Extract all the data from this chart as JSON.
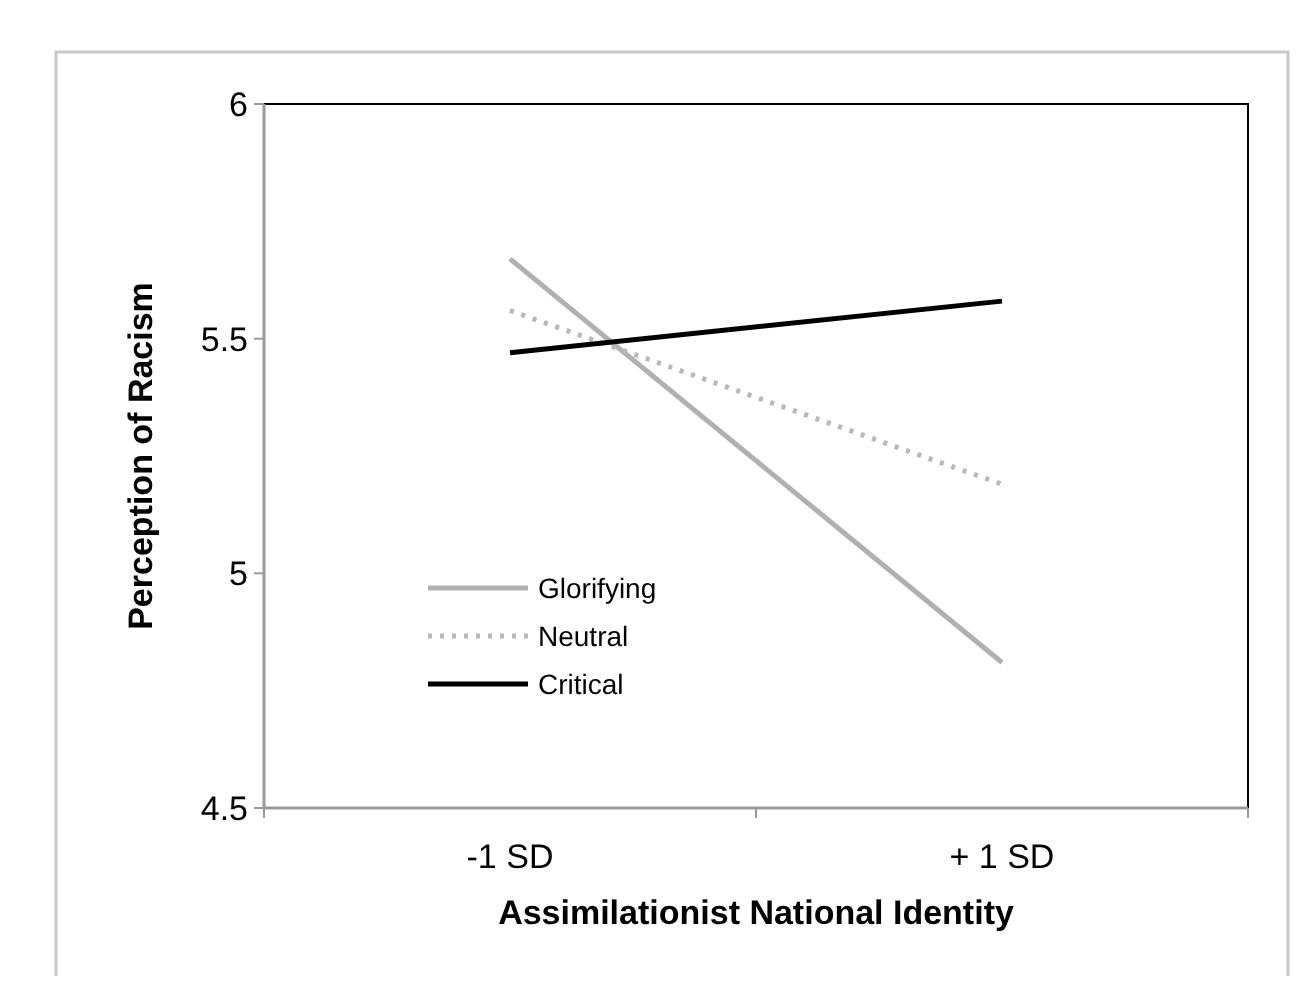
{
  "chart_data": {
    "type": "line",
    "xlabel": "Assimilationist National Identity",
    "ylabel": "Perception of Racism",
    "categories": [
      "-1 SD",
      "+ 1 SD"
    ],
    "series": [
      {
        "name": "Glorifying",
        "color": "#b0b0b0",
        "values": [
          5.67,
          4.81
        ],
        "line_style": "solid"
      },
      {
        "name": "Neutral",
        "color": "#b8b8b8",
        "values": [
          5.56,
          5.19
        ],
        "line_style": "dotted"
      },
      {
        "name": "Critical",
        "color": "#000000",
        "values": [
          5.47,
          5.58
        ],
        "line_style": "solid"
      }
    ],
    "ylim": [
      4.5,
      6
    ],
    "yticks": [
      4.5,
      5,
      5.5,
      6
    ],
    "grid": false,
    "legend": "bottom left",
    "marker": "none"
  }
}
